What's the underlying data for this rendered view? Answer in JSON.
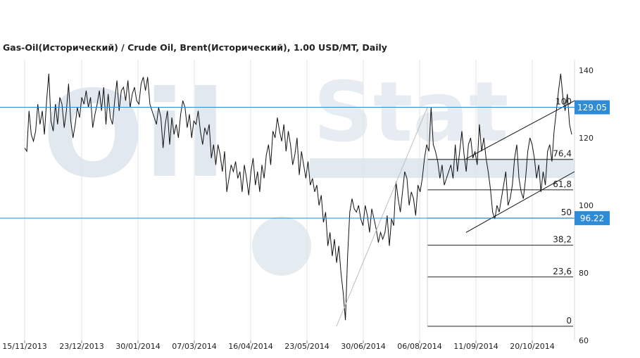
{
  "chart_data": {
    "type": "line",
    "title": "Gas-Oil(Исторический) / Crude Oil, Brent(Исторический), 1.00 USD/MT, Daily",
    "x_labels": [
      "15/11/2013",
      "23/12/2013",
      "30/01/2014",
      "07/03/2014",
      "16/04/2014",
      "23/05/2014",
      "30/06/2014",
      "06/08/2014",
      "11/09/2014",
      "20/10/2014"
    ],
    "y_ticks": [
      60,
      80,
      100,
      120,
      140
    ],
    "ylim": [
      60,
      141
    ],
    "grid": "vertical",
    "series": [
      {
        "values": [
          117,
          116,
          128,
          121,
          119,
          122,
          130,
          124,
          128,
          121,
          131,
          139,
          125,
          122,
          130,
          124,
          132,
          130,
          123,
          128,
          136,
          125,
          120,
          124,
          129,
          126,
          132,
          130,
          134,
          129,
          132,
          123,
          127,
          130,
          134,
          128,
          135,
          124,
          133,
          126,
          124,
          131,
          137,
          128,
          134,
          135,
          131,
          137,
          129,
          133,
          135,
          131,
          130,
          136,
          138,
          134,
          138,
          130,
          128,
          126,
          124,
          129,
          126,
          117,
          124,
          128,
          118,
          126,
          121,
          124,
          120,
          127,
          131,
          129,
          123,
          127,
          120,
          125,
          124,
          128,
          122,
          118,
          123,
          121,
          124,
          114,
          118,
          112,
          118,
          115,
          110,
          116,
          104,
          108,
          112,
          110,
          113,
          108,
          110,
          104,
          112,
          108,
          103,
          110,
          114,
          106,
          110,
          104,
          112,
          108,
          115,
          118,
          112,
          122,
          120,
          126,
          122,
          119,
          124,
          116,
          122,
          118,
          112,
          115,
          120,
          109,
          116,
          112,
          108,
          113,
          106,
          108,
          104,
          106,
          100,
          103,
          95,
          98,
          88,
          92,
          85,
          90,
          83,
          88,
          80,
          74,
          66,
          85,
          98,
          102,
          99,
          98,
          100,
          96,
          94,
          100,
          97,
          92,
          99,
          96,
          93,
          89,
          92,
          90,
          92,
          97,
          88,
          96,
          94,
          107,
          102,
          98,
          104,
          110,
          108,
          100,
          104,
          102,
          97,
          106,
          104,
          108,
          114,
          118,
          116,
          129,
          118,
          116,
          113,
          108,
          112,
          106,
          108,
          110,
          112,
          108,
          118,
          110,
          116,
          122,
          115,
          110,
          118,
          120,
          114,
          116,
          112,
          124,
          116,
          120,
          114,
          110,
          105,
          98,
          96,
          100,
          98,
          102,
          106,
          110,
          100,
          102,
          106,
          114,
          118,
          108,
          104,
          102,
          108,
          116,
          120,
          118,
          114,
          108,
          112,
          104,
          110,
          106,
          116,
          118,
          113,
          122,
          128,
          134,
          139,
          132,
          128,
          133,
          124,
          121
        ]
      }
    ],
    "horizontal_levels": [
      {
        "label": "129.05",
        "value": 129.05,
        "color": "#2E8BD8"
      },
      {
        "label": "96.22",
        "value": 96.22,
        "color": "#2E8BD8"
      }
    ],
    "fibonacci": {
      "levels": [
        {
          "label": "100",
          "value": 129.05
        },
        {
          "label": "76,4",
          "value": 113.6
        },
        {
          "label": "61,8",
          "value": 104.6
        },
        {
          "label": "50",
          "value": 96.22
        },
        {
          "label": "38,2",
          "value": 88.2
        },
        {
          "label": "23,6",
          "value": 78.8
        },
        {
          "label": "0",
          "value": 64.2
        }
      ]
    }
  },
  "watermark": {
    "brand_a": "Oil",
    "brand_b": "Stat",
    "color": "#c9d7e3"
  }
}
